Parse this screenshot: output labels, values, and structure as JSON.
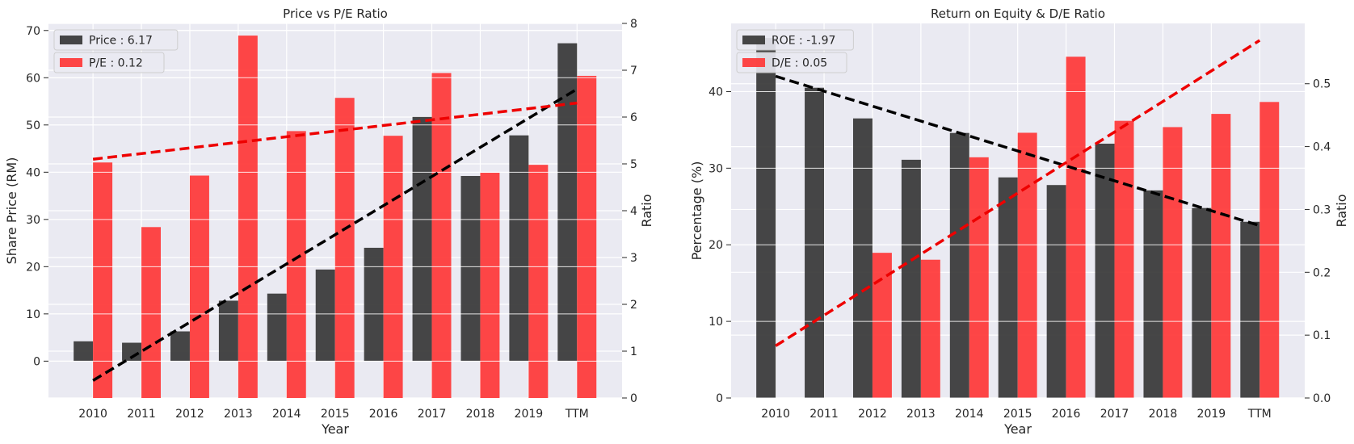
{
  "chart_data": [
    {
      "type": "bar",
      "title": "Price vs P/E Ratio",
      "xlabel": "Year",
      "ylabel": "Share Price (RM)",
      "ylabel_right": "Ratio",
      "categories": [
        "2010",
        "2011",
        "2012",
        "2013",
        "2014",
        "2015",
        "2016",
        "2017",
        "2018",
        "2019",
        "TTM"
      ],
      "ylim": [
        -7.8,
        71.5
      ],
      "ylim_right": [
        0,
        8
      ],
      "yticks": [
        0,
        10,
        20,
        30,
        40,
        50,
        60,
        70
      ],
      "yticks_right": [
        0,
        1,
        2,
        3,
        4,
        5,
        6,
        7,
        8
      ],
      "series": [
        {
          "name": "Price : 6.17",
          "axis": "left",
          "color": "#333333",
          "values": [
            4.2,
            3.9,
            6.3,
            12.8,
            14.3,
            19.4,
            24.0,
            51.7,
            39.2,
            47.8,
            67.3
          ]
        },
        {
          "name": "P/E : 0.12",
          "axis": "right",
          "color": "#ff3333",
          "values": [
            5.03,
            3.65,
            4.75,
            7.74,
            5.7,
            6.41,
            5.6,
            6.94,
            4.81,
            4.98,
            6.88
          ]
        }
      ],
      "trendlines": [
        {
          "axis": "left",
          "color": "#000000",
          "from": [
            0,
            -4.1
          ],
          "to": [
            10,
            57.6
          ]
        },
        {
          "axis": "right",
          "color": "#ee0000",
          "from": [
            0,
            5.1
          ],
          "to": [
            10,
            6.3
          ]
        }
      ],
      "grid": true,
      "legend": "top-left"
    },
    {
      "type": "bar",
      "title": "Return on Equity & D/E Ratio",
      "xlabel": "Year",
      "ylabel": "Percentage (%)",
      "ylabel_right": "Ratio",
      "categories": [
        "2010",
        "2011",
        "2012",
        "2013",
        "2014",
        "2015",
        "2016",
        "2017",
        "2018",
        "2019",
        "TTM"
      ],
      "ylim": [
        0,
        48.9
      ],
      "ylim_right": [
        0,
        0.596
      ],
      "yticks": [
        0,
        10,
        20,
        30,
        40
      ],
      "yticks_right": [
        0.0,
        0.1,
        0.2,
        0.3,
        0.4,
        0.5
      ],
      "series": [
        {
          "name": "ROE : -1.97",
          "axis": "left",
          "color": "#333333",
          "values": [
            47.0,
            40.5,
            36.5,
            31.1,
            34.6,
            28.8,
            27.8,
            33.2,
            27.1,
            24.8,
            23.0
          ]
        },
        {
          "name": "D/E : 0.05",
          "axis": "right",
          "color": "#ff3333",
          "values": [
            0,
            0,
            0.231,
            0.22,
            0.383,
            0.422,
            0.543,
            0.441,
            0.431,
            0.452,
            0.471
          ]
        }
      ],
      "trendlines": [
        {
          "axis": "left",
          "color": "#000000",
          "from": [
            0,
            42.0
          ],
          "to": [
            10,
            22.5
          ]
        },
        {
          "axis": "right",
          "color": "#ee0000",
          "from": [
            0,
            0.083
          ],
          "to": [
            10,
            0.569
          ]
        }
      ],
      "grid": true,
      "legend": "top-left"
    }
  ]
}
